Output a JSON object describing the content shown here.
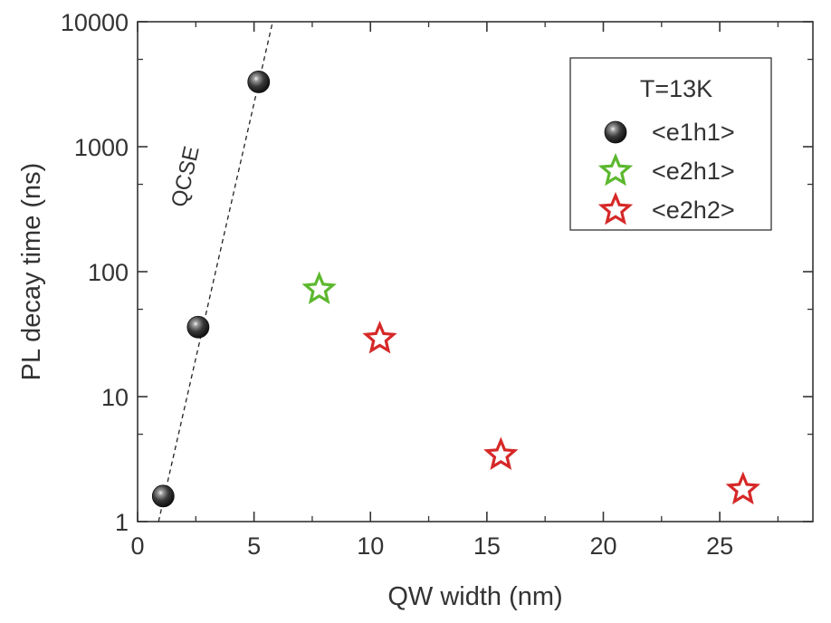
{
  "chart_data": {
    "type": "scatter",
    "xlabel": "QW width (nm)",
    "ylabel": "PL decay time (ns)",
    "xlim": [
      0,
      29
    ],
    "ylim": [
      1,
      10000
    ],
    "yscale": "log",
    "grid": false,
    "legend_position": "top-right",
    "legend_title": "T=13K",
    "x_ticks": [
      0,
      5,
      10,
      15,
      20,
      25
    ],
    "x_tick_labels": [
      "0",
      "5",
      "10",
      "15",
      "20",
      "25"
    ],
    "y_ticks": [
      1,
      10,
      100,
      1000,
      10000
    ],
    "y_tick_labels": [
      "1",
      "10",
      "100",
      "1000",
      "10000"
    ],
    "series": [
      {
        "name": "<e1h1>",
        "marker": "sphere",
        "color": "#222222",
        "points": [
          {
            "x": 1.1,
            "y": 1.6
          },
          {
            "x": 2.6,
            "y": 36
          },
          {
            "x": 5.2,
            "y": 3300
          }
        ]
      },
      {
        "name": "<e2h1>",
        "marker": "star",
        "color": "#5cb82e",
        "points": [
          {
            "x": 7.8,
            "y": 72
          }
        ]
      },
      {
        "name": "<e2h2>",
        "marker": "star",
        "color": "#d62828",
        "points": [
          {
            "x": 10.4,
            "y": 29
          },
          {
            "x": 15.6,
            "y": 3.4
          },
          {
            "x": 26.0,
            "y": 1.8
          }
        ]
      }
    ],
    "annotations": [
      {
        "text": "QCSE",
        "line": {
          "style": "dashed",
          "from": {
            "x": 0.9,
            "y": 1.0
          },
          "to": {
            "x": 5.8,
            "y": 10000
          }
        }
      }
    ]
  }
}
